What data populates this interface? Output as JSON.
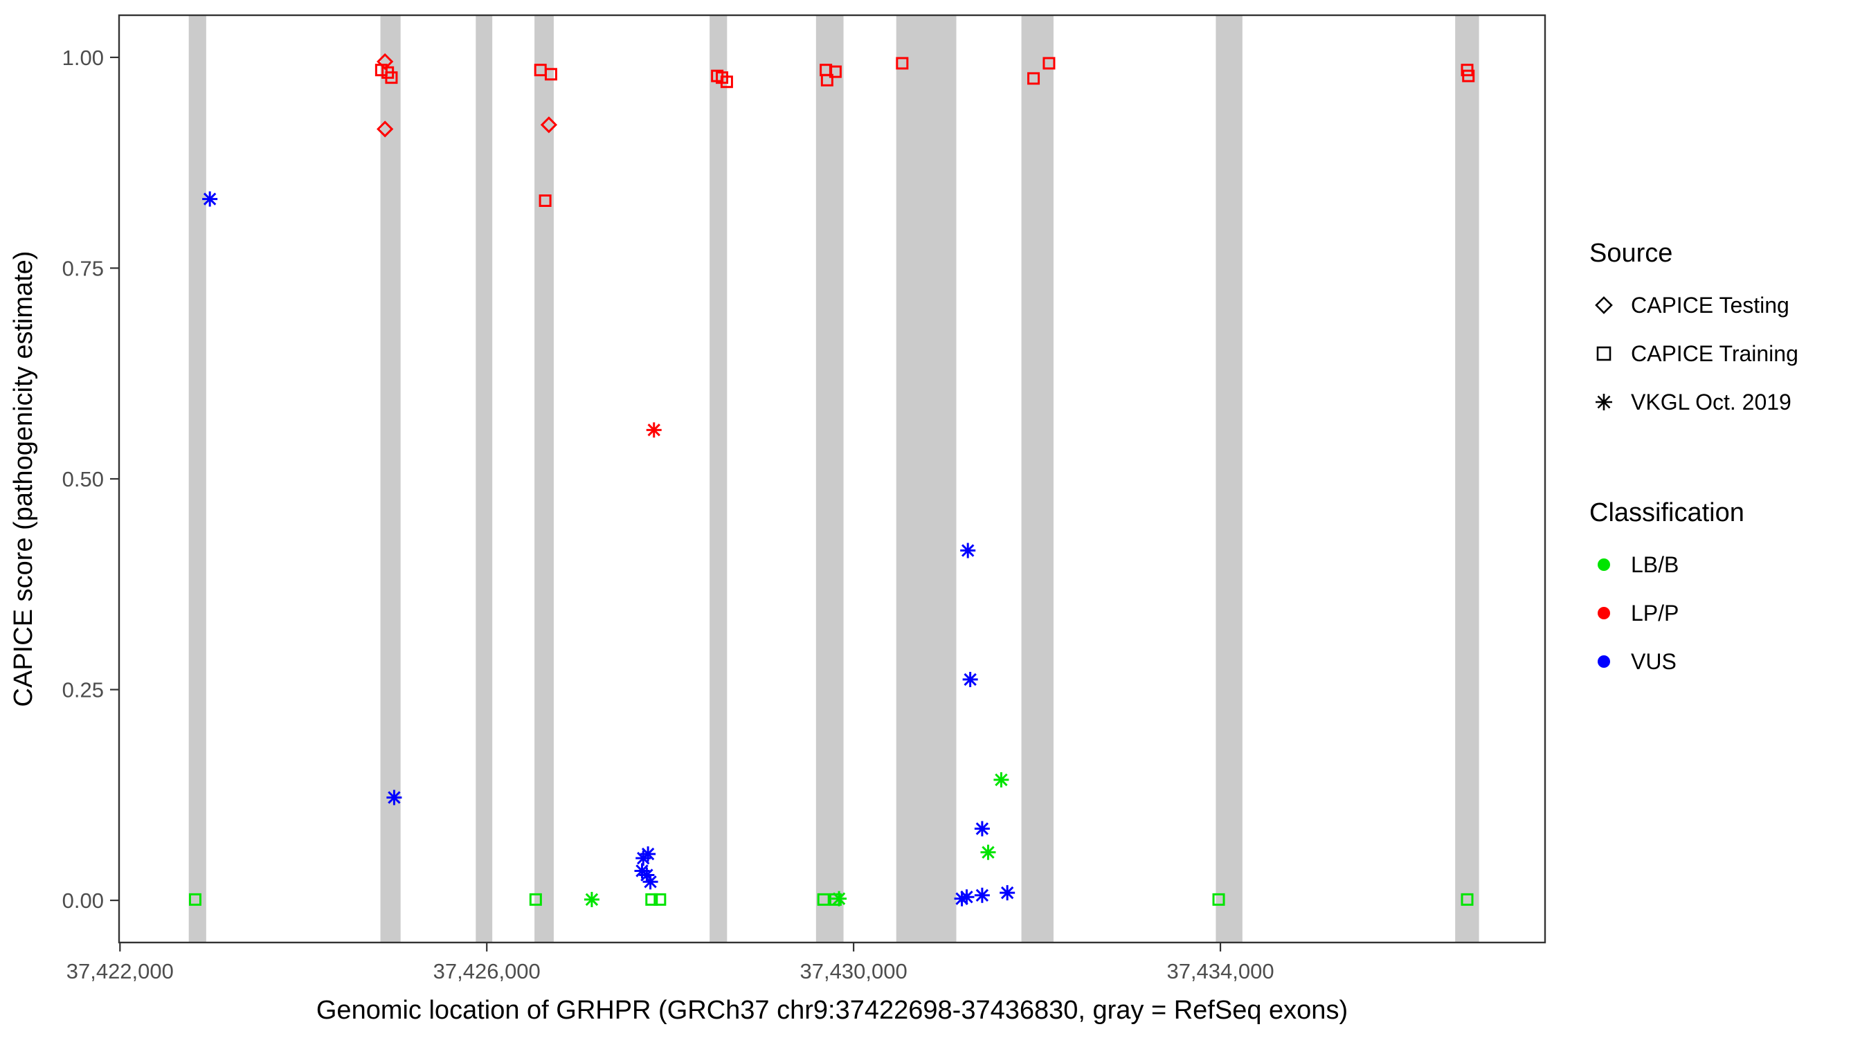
{
  "chart_data": {
    "type": "scatter",
    "title": "",
    "xlabel": "Genomic location of GRHPR (GRCh37 chr9:37422698-37436830, gray = RefSeq exons)",
    "ylabel": "CAPICE score (pathogenicity estimate)",
    "xlim": [
      37421990,
      37437540
    ],
    "ylim": [
      -0.05,
      1.05
    ],
    "grid": false,
    "legend_position": "right",
    "x_ticks": [
      {
        "value": 37422000,
        "label": "37,422,000"
      },
      {
        "value": 37426000,
        "label": "37,426,000"
      },
      {
        "value": 37430000,
        "label": "37,430,000"
      },
      {
        "value": 37434000,
        "label": "37,434,000"
      }
    ],
    "y_ticks": [
      {
        "value": 0.0,
        "label": "0.00"
      },
      {
        "value": 0.25,
        "label": "0.25"
      },
      {
        "value": 0.5,
        "label": "0.50"
      },
      {
        "value": 0.75,
        "label": "0.75"
      },
      {
        "value": 1.0,
        "label": "1.00"
      }
    ],
    "colors": {
      "exon": "#cbcbcb",
      "lbb": "#00e400",
      "lpp": "#ff0000",
      "vus": "#0000ff",
      "axis_text": "#4d4d4d",
      "axis_title": "#000000",
      "panel_border": "#333333"
    },
    "exons": [
      [
        37422750,
        37422940
      ],
      [
        37424840,
        37425060
      ],
      [
        37425880,
        37426060
      ],
      [
        37426520,
        37426730
      ],
      [
        37428430,
        37428620
      ],
      [
        37429590,
        37429890
      ],
      [
        37430465,
        37431120
      ],
      [
        37431830,
        37432180
      ],
      [
        37433950,
        37434240
      ],
      [
        37436560,
        37436820
      ]
    ],
    "series": [
      {
        "name": "LP/P CAPICE Testing",
        "source": "CAPICE Testing",
        "classification": "LP/P",
        "shape": "diamond",
        "color_key": "lpp",
        "points": [
          [
            37424890,
            0.995
          ],
          [
            37424890,
            0.915
          ],
          [
            37426677,
            0.92
          ]
        ]
      },
      {
        "name": "LP/P CAPICE Training",
        "source": "CAPICE Training",
        "classification": "LP/P",
        "shape": "square",
        "color_key": "lpp",
        "points": [
          [
            37424850,
            0.985
          ],
          [
            37424920,
            0.982
          ],
          [
            37424960,
            0.976
          ],
          [
            37426585,
            0.985
          ],
          [
            37426700,
            0.98
          ],
          [
            37426637,
            0.83
          ],
          [
            37428513,
            0.978
          ],
          [
            37428565,
            0.976
          ],
          [
            37428617,
            0.971
          ],
          [
            37429698,
            0.985
          ],
          [
            37429802,
            0.983
          ],
          [
            37429711,
            0.973
          ],
          [
            37430530,
            0.993
          ],
          [
            37431962,
            0.975
          ],
          [
            37432131,
            0.993
          ],
          [
            37436691,
            0.985
          ],
          [
            37436704,
            0.978
          ]
        ]
      },
      {
        "name": "LP/P VKGL Oct. 2019",
        "source": "VKGL Oct. 2019",
        "classification": "LP/P",
        "shape": "asterisk",
        "color_key": "lpp",
        "points": [
          [
            37427823,
            0.558
          ]
        ]
      },
      {
        "name": "VUS VKGL Oct. 2019",
        "source": "VKGL Oct. 2019",
        "classification": "VUS",
        "shape": "asterisk",
        "color_key": "vus",
        "points": [
          [
            37422980,
            0.832
          ],
          [
            37424990,
            0.122
          ],
          [
            37427706,
            0.05
          ],
          [
            37427758,
            0.055
          ],
          [
            37427693,
            0.035
          ],
          [
            37427745,
            0.03
          ],
          [
            37427784,
            0.022
          ],
          [
            37431246,
            0.415
          ],
          [
            37431272,
            0.262
          ],
          [
            37431402,
            0.085
          ],
          [
            37431181,
            0.002
          ],
          [
            37431233,
            0.004
          ],
          [
            37431402,
            0.006
          ],
          [
            37431676,
            0.009
          ]
        ]
      },
      {
        "name": "LB/B CAPICE Training",
        "source": "CAPICE Training",
        "classification": "LB/B",
        "shape": "square",
        "color_key": "lbb",
        "points": [
          [
            37422820,
            0.001
          ],
          [
            37426533,
            0.001
          ],
          [
            37427797,
            0.001
          ],
          [
            37427888,
            0.001
          ],
          [
            37429672,
            0.001
          ],
          [
            37429802,
            0.001
          ],
          [
            37433981,
            0.001
          ],
          [
            37436691,
            0.001
          ]
        ]
      },
      {
        "name": "LB/B VKGL Oct. 2019",
        "source": "VKGL Oct. 2019",
        "classification": "LB/B",
        "shape": "asterisk",
        "color_key": "lbb",
        "points": [
          [
            37427145,
            0.001
          ],
          [
            37429841,
            0.002
          ],
          [
            37431467,
            0.057
          ],
          [
            37431610,
            0.143
          ]
        ]
      }
    ],
    "legend": {
      "source": {
        "title": "Source",
        "items": [
          {
            "label": "CAPICE Testing",
            "shape": "diamond"
          },
          {
            "label": "CAPICE Training",
            "shape": "square"
          },
          {
            "label": "VKGL Oct. 2019",
            "shape": "asterisk"
          }
        ]
      },
      "classification": {
        "title": "Classification",
        "items": [
          {
            "label": "LB/B",
            "color": "#00e400"
          },
          {
            "label": "LP/P",
            "color": "#ff0000"
          },
          {
            "label": "VUS",
            "color": "#0000ff"
          }
        ]
      }
    }
  }
}
